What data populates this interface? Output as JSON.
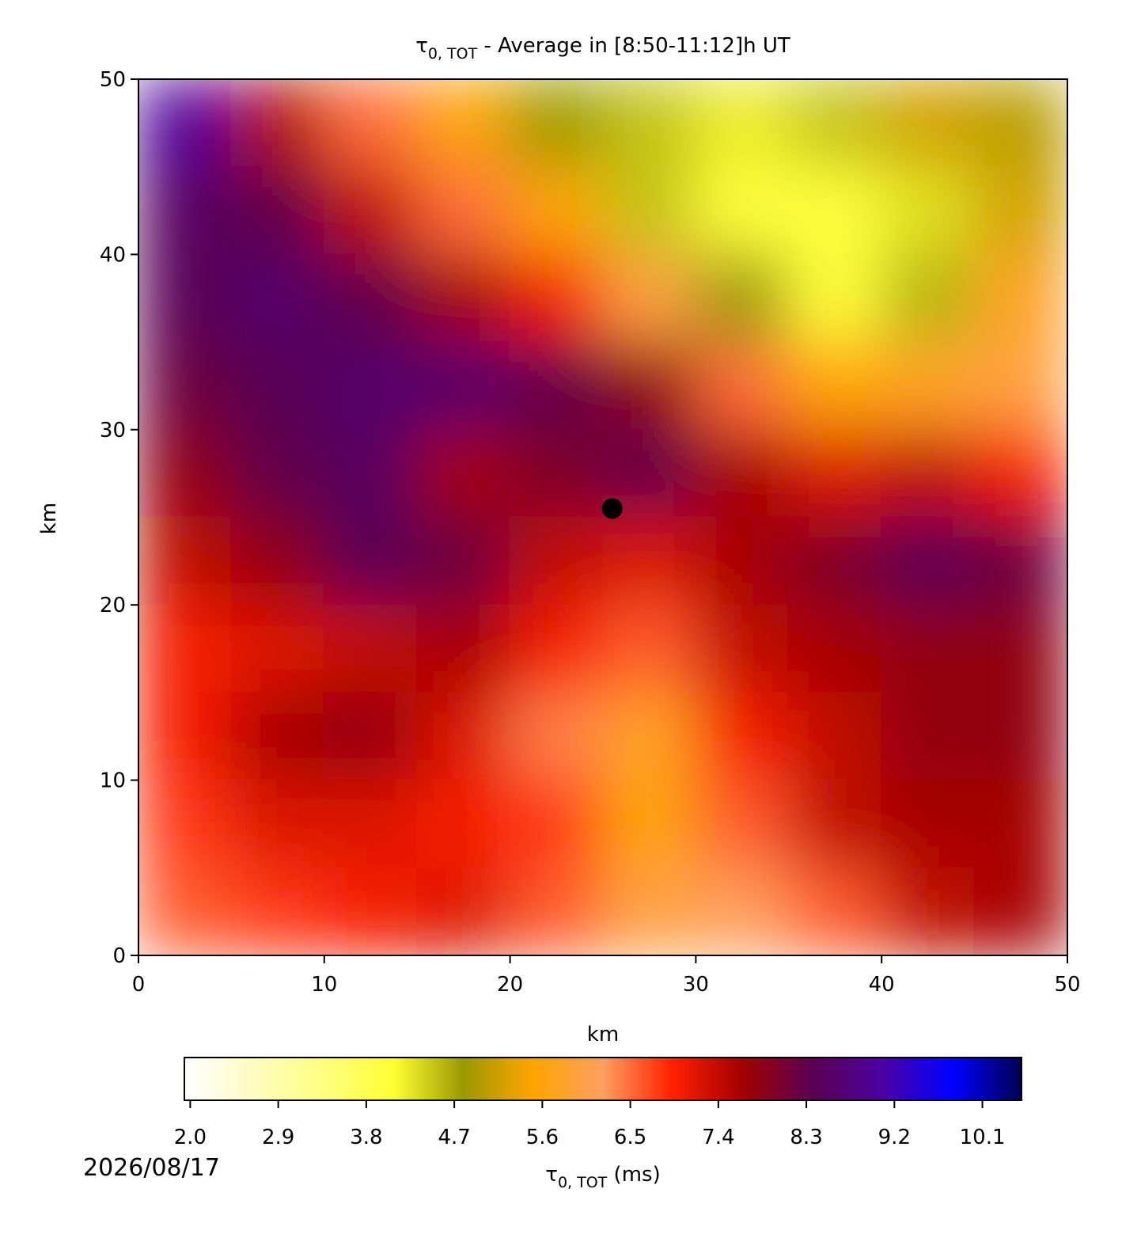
{
  "chart_data": {
    "type": "heatmap",
    "title_symbol": "τ",
    "title_subscript": "0, TOT",
    "title": " - Average in [8:50-11:12]h UT",
    "xlabel": "km",
    "ylabel": "km",
    "xlim": [
      0,
      50
    ],
    "ylim": [
      0,
      50
    ],
    "xticks": [
      0,
      10,
      20,
      30,
      40,
      50
    ],
    "yticks": [
      0,
      10,
      20,
      30,
      40,
      50
    ],
    "z": [
      [
        9.0,
        7.5,
        6.5,
        5.5,
        4.8,
        4.5,
        4.2,
        4.5,
        5.2,
        5.0
      ],
      [
        8.5,
        8.3,
        7.4,
        6.5,
        5.5,
        4.5,
        4.0,
        4.0,
        4.3,
        5.2
      ],
      [
        8.4,
        8.6,
        8.3,
        7.6,
        7.0,
        6.0,
        4.8,
        4.0,
        4.6,
        5.8
      ],
      [
        8.2,
        8.4,
        8.6,
        8.6,
        8.3,
        7.8,
        6.5,
        5.5,
        5.8,
        6.0
      ],
      [
        7.8,
        8.3,
        8.5,
        7.6,
        8.0,
        8.3,
        7.6,
        7.2,
        7.4,
        7.0
      ],
      [
        7.4,
        7.8,
        8.4,
        8.2,
        7.4,
        7.2,
        7.6,
        8.0,
        8.4,
        8.2
      ],
      [
        7.0,
        7.2,
        7.4,
        7.6,
        7.0,
        6.6,
        7.4,
        7.6,
        7.8,
        7.8
      ],
      [
        7.0,
        7.6,
        7.8,
        7.2,
        6.4,
        5.8,
        7.0,
        7.4,
        7.8,
        7.8
      ],
      [
        6.8,
        7.2,
        7.2,
        7.0,
        6.8,
        5.5,
        6.6,
        7.4,
        7.6,
        7.6
      ],
      [
        6.6,
        6.8,
        7.0,
        7.2,
        6.6,
        6.0,
        6.2,
        6.6,
        7.4,
        7.6
      ]
    ],
    "point": {
      "x": 25.5,
      "y": 25.5
    },
    "colormap": [
      "#ffffff",
      "#fffcc0",
      "#ffff80",
      "#ffff33",
      "#999900",
      "#ffa500",
      "#ff9f60",
      "#ff2000",
      "#a00000",
      "#5a0050",
      "#4b00a0",
      "#0000ff",
      "#000050"
    ],
    "clim": [
      1.94,
      10.5
    ],
    "cticks": [
      {
        "value": 2.0,
        "label": "2.0"
      },
      2.9,
      3.8,
      4.7,
      5.6,
      6.5,
      7.4,
      8.3,
      9.2,
      10.1
    ],
    "clabel_symbol": "τ",
    "clabel_subscript": "0, TOT",
    "clabel": " (ms)",
    "date": "2026/08/17"
  }
}
